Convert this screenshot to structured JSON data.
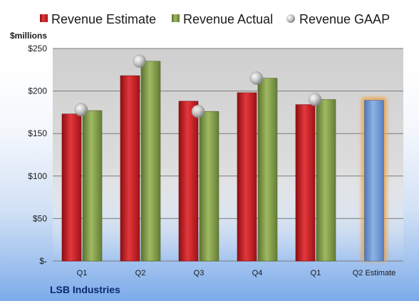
{
  "chart_data": {
    "type": "bar",
    "title": "",
    "company": "LSB Industries",
    "ylabel": "$millions",
    "ylim": [
      0,
      250
    ],
    "yticks": [
      {
        "value": 0,
        "label": "$-"
      },
      {
        "value": 50,
        "label": "$50"
      },
      {
        "value": 100,
        "label": "$100"
      },
      {
        "value": 150,
        "label": "$150"
      },
      {
        "value": 200,
        "label": "$200"
      },
      {
        "value": 250,
        "label": "$250"
      }
    ],
    "categories": [
      "Q1",
      "Q2",
      "Q3",
      "Q4",
      "Q1",
      "Q2 Estimate"
    ],
    "series": [
      {
        "name": "Revenue Estimate",
        "kind": "bar",
        "color": "#c8181d",
        "values": [
          173,
          218,
          188,
          198,
          184,
          null
        ]
      },
      {
        "name": "Revenue Actual",
        "kind": "bar",
        "color": "#7f9a48",
        "values": [
          177,
          235,
          176,
          215,
          190,
          null
        ]
      },
      {
        "name": "Revenue GAAP",
        "kind": "marker",
        "color": "#b8b8b8",
        "values": [
          178,
          235,
          176,
          215,
          190,
          null
        ]
      },
      {
        "name": "Q2 Estimate",
        "kind": "bar-highlight",
        "color": "#6e97d0",
        "values": [
          null,
          null,
          null,
          null,
          null,
          189
        ]
      }
    ],
    "legend_position": "top",
    "grid": true
  }
}
